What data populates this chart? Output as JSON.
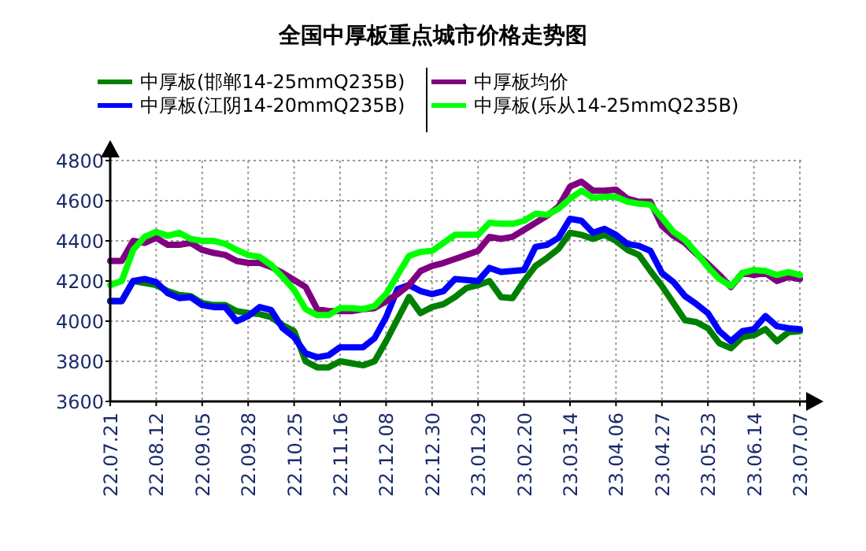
{
  "chart_data": {
    "type": "line",
    "title": "全国中厚板重点城市价格走势图",
    "legend": "top",
    "grid": true,
    "categories": [
      "22.07.21",
      null,
      null,
      null,
      "22.08.12",
      null,
      null,
      null,
      "22.09.05",
      null,
      null,
      null,
      "22.09.28",
      null,
      null,
      null,
      "22.10.25",
      null,
      null,
      null,
      "22.11.16",
      null,
      null,
      null,
      "22.12.08",
      null,
      null,
      null,
      "22.12.30",
      null,
      null,
      null,
      "23.01.29",
      null,
      null,
      null,
      "23.02.20",
      null,
      null,
      null,
      "23.03.14",
      null,
      null,
      null,
      "23.04.06",
      null,
      null,
      null,
      "23.04.27",
      null,
      null,
      null,
      "23.05.23",
      null,
      null,
      null,
      "23.06.14",
      null,
      null,
      null,
      "23.07.07"
    ],
    "ylim": [
      3600,
      4800
    ],
    "yticks": [
      3600,
      3800,
      4000,
      4200,
      4400,
      4600,
      4800
    ],
    "series": [
      {
        "name": "中厚板(邯郸14-25mmQ235B)",
        "color": "#008000",
        "values": [
          4100,
          4100,
          4200,
          4190,
          4180,
          4150,
          4130,
          4125,
          4090,
          4080,
          4080,
          4050,
          4040,
          4035,
          4020,
          3980,
          3950,
          3800,
          3770,
          3770,
          3800,
          3790,
          3780,
          3800,
          3900,
          4010,
          4120,
          4040,
          4070,
          4085,
          4120,
          4165,
          4180,
          4200,
          4120,
          4115,
          4200,
          4275,
          4315,
          4360,
          4440,
          4430,
          4410,
          4430,
          4400,
          4355,
          4330,
          4250,
          4175,
          4090,
          4005,
          3995,
          3965,
          3890,
          3865,
          3920,
          3930,
          3960,
          3900,
          3945,
          3950
        ]
      },
      {
        "name": "中厚板(江阴14-20mmQ235B)",
        "color": "#0000ff",
        "values": [
          4100,
          4100,
          4200,
          4210,
          4195,
          4140,
          4115,
          4120,
          4080,
          4070,
          4070,
          4000,
          4025,
          4070,
          4055,
          3965,
          3920,
          3840,
          3820,
          3830,
          3870,
          3870,
          3870,
          3915,
          4020,
          4160,
          4180,
          4150,
          4135,
          4150,
          4210,
          4205,
          4200,
          4265,
          4245,
          4250,
          4255,
          4370,
          4380,
          4415,
          4510,
          4500,
          4440,
          4460,
          4430,
          4385,
          4375,
          4350,
          4240,
          4195,
          4125,
          4085,
          4040,
          3950,
          3900,
          3950,
          3960,
          4025,
          3975,
          3965,
          3960
        ]
      },
      {
        "name": "中厚板均价",
        "color": "#800080",
        "values": [
          4300,
          4300,
          4400,
          4390,
          4415,
          4380,
          4380,
          4390,
          4355,
          4340,
          4330,
          4300,
          4290,
          4290,
          4270,
          4240,
          4205,
          4170,
          4060,
          4050,
          4050,
          4050,
          4060,
          4065,
          4100,
          4135,
          4180,
          4250,
          4275,
          4290,
          4310,
          4330,
          4350,
          4420,
          4410,
          4420,
          4455,
          4490,
          4525,
          4570,
          4670,
          4695,
          4650,
          4650,
          4655,
          4610,
          4595,
          4595,
          4475,
          4425,
          4390,
          4335,
          4285,
          4230,
          4170,
          4240,
          4230,
          4240,
          4200,
          4220,
          4210
        ]
      },
      {
        "name": "中厚板(乐从14-25mmQ235B)",
        "color": "#00ff00",
        "values": [
          4180,
          4200,
          4355,
          4420,
          4445,
          4425,
          4440,
          4410,
          4400,
          4400,
          4385,
          4355,
          4330,
          4320,
          4280,
          4220,
          4155,
          4060,
          4030,
          4030,
          4065,
          4065,
          4060,
          4075,
          4135,
          4230,
          4325,
          4345,
          4350,
          4390,
          4430,
          4430,
          4430,
          4490,
          4485,
          4485,
          4500,
          4535,
          4530,
          4560,
          4610,
          4650,
          4615,
          4620,
          4620,
          4595,
          4585,
          4580,
          4515,
          4445,
          4405,
          4340,
          4270,
          4210,
          4175,
          4240,
          4255,
          4250,
          4230,
          4245,
          4230
        ]
      }
    ]
  }
}
